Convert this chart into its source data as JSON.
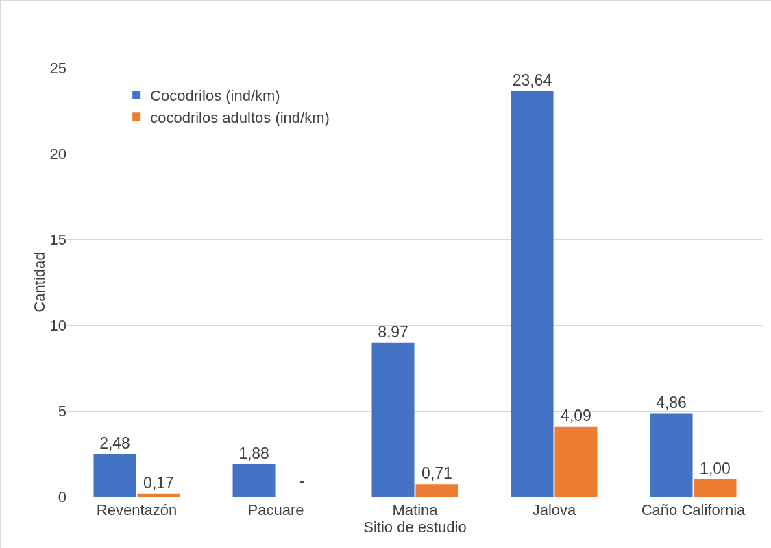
{
  "chart_data": {
    "type": "bar",
    "xlabel": "Sitio de estudio",
    "ylabel": "Cantidad",
    "categories": [
      "Reventazón",
      "Pacuare",
      "Matina",
      "Jalova",
      "Caño California"
    ],
    "series": [
      {
        "name": "Cocodrilos (ind/km)",
        "color": "#4472c4",
        "values": [
          2.48,
          1.88,
          8.97,
          23.64,
          4.86
        ],
        "value_labels": [
          "2,48",
          "1,88",
          "8,97",
          "23,64",
          "4,86"
        ]
      },
      {
        "name": "cocodrilos adultos (ind/km)",
        "color": "#ed7d31",
        "values": [
          0.17,
          null,
          0.71,
          4.09,
          1.0
        ],
        "value_labels": [
          "0,17",
          null,
          "0,71",
          "4,09",
          "1,00"
        ]
      }
    ],
    "annotations": [
      {
        "text": "-",
        "x": "Pacuare",
        "y": 0
      }
    ],
    "ylim": [
      0,
      25
    ],
    "yticks": [
      0,
      5,
      10,
      15,
      20,
      25
    ],
    "grid": "y",
    "legend": "top left"
  }
}
